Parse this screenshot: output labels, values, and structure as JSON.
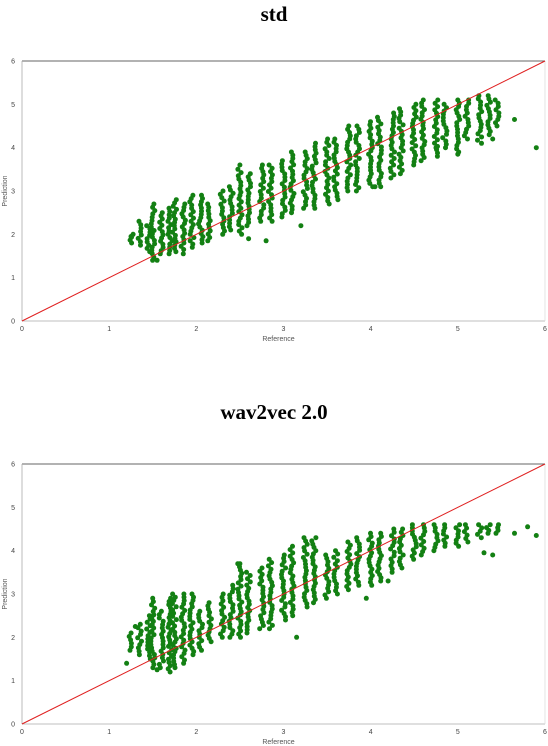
{
  "chart_data": [
    {
      "type": "scatter",
      "title": "std",
      "xlabel": "Reference",
      "ylabel": "Prediction",
      "xlim": [
        0,
        6
      ],
      "ylim": [
        0,
        6
      ],
      "xticks": [
        "0",
        "1",
        "2",
        "3",
        "4",
        "5",
        "6"
      ],
      "yticks": [
        "0",
        "1",
        "2",
        "3",
        "4",
        "5",
        "6"
      ],
      "grid": false,
      "point_color": "#138013",
      "reference_line": {
        "color": "#e02020",
        "from": [
          0,
          0
        ],
        "to": [
          6,
          6
        ]
      },
      "bands": [
        {
          "x": 1.25,
          "lo": 1.8,
          "hi": 2.0
        },
        {
          "x": 1.35,
          "lo": 1.75,
          "hi": 2.3
        },
        {
          "x": 1.45,
          "lo": 1.6,
          "hi": 2.2
        },
        {
          "x": 1.5,
          "lo": 1.4,
          "hi": 2.7
        },
        {
          "x": 1.6,
          "lo": 1.55,
          "hi": 2.5
        },
        {
          "x": 1.7,
          "lo": 1.55,
          "hi": 2.6
        },
        {
          "x": 1.75,
          "lo": 1.6,
          "hi": 2.8
        },
        {
          "x": 1.85,
          "lo": 1.65,
          "hi": 2.7
        },
        {
          "x": 1.95,
          "lo": 1.7,
          "hi": 2.9
        },
        {
          "x": 2.05,
          "lo": 1.8,
          "hi": 2.9
        },
        {
          "x": 2.15,
          "lo": 1.85,
          "hi": 2.7
        },
        {
          "x": 2.3,
          "lo": 2.0,
          "hi": 3.0
        },
        {
          "x": 2.4,
          "lo": 2.1,
          "hi": 3.1
        },
        {
          "x": 2.5,
          "lo": 2.0,
          "hi": 3.5
        },
        {
          "x": 2.6,
          "lo": 2.2,
          "hi": 3.4
        },
        {
          "x": 2.75,
          "lo": 2.3,
          "hi": 3.6
        },
        {
          "x": 2.85,
          "lo": 2.3,
          "hi": 3.6
        },
        {
          "x": 3.0,
          "lo": 2.4,
          "hi": 3.7
        },
        {
          "x": 3.1,
          "lo": 2.5,
          "hi": 3.9
        },
        {
          "x": 3.25,
          "lo": 2.6,
          "hi": 3.9
        },
        {
          "x": 3.35,
          "lo": 2.6,
          "hi": 4.1
        },
        {
          "x": 3.5,
          "lo": 2.7,
          "hi": 4.2
        },
        {
          "x": 3.6,
          "lo": 2.8,
          "hi": 4.2
        },
        {
          "x": 3.75,
          "lo": 3.0,
          "hi": 4.5
        },
        {
          "x": 3.85,
          "lo": 3.0,
          "hi": 4.5
        },
        {
          "x": 4.0,
          "lo": 3.1,
          "hi": 4.6
        },
        {
          "x": 4.1,
          "lo": 3.1,
          "hi": 4.7
        },
        {
          "x": 4.25,
          "lo": 3.3,
          "hi": 4.8
        },
        {
          "x": 4.35,
          "lo": 3.4,
          "hi": 4.9
        },
        {
          "x": 4.5,
          "lo": 3.6,
          "hi": 5.0
        },
        {
          "x": 4.6,
          "lo": 3.7,
          "hi": 5.1
        },
        {
          "x": 4.75,
          "lo": 3.8,
          "hi": 5.1
        },
        {
          "x": 4.85,
          "lo": 4.0,
          "hi": 5.0
        },
        {
          "x": 5.0,
          "lo": 3.9,
          "hi": 5.1
        },
        {
          "x": 5.1,
          "lo": 4.2,
          "hi": 5.1
        },
        {
          "x": 5.25,
          "lo": 4.1,
          "hi": 5.2
        },
        {
          "x": 5.35,
          "lo": 4.3,
          "hi": 5.2
        },
        {
          "x": 5.45,
          "lo": 4.5,
          "hi": 5.1
        }
      ],
      "outliers": [
        {
          "x": 1.25,
          "y": 1.95
        },
        {
          "x": 1.55,
          "y": 1.4
        },
        {
          "x": 1.85,
          "y": 1.55
        },
        {
          "x": 2.5,
          "y": 3.6
        },
        {
          "x": 2.6,
          "y": 1.9
        },
        {
          "x": 2.8,
          "y": 1.85
        },
        {
          "x": 3.2,
          "y": 2.2
        },
        {
          "x": 4.05,
          "y": 3.1
        },
        {
          "x": 4.75,
          "y": 4.0
        },
        {
          "x": 5.0,
          "y": 3.85
        },
        {
          "x": 5.4,
          "y": 4.2
        },
        {
          "x": 5.65,
          "y": 4.65
        },
        {
          "x": 5.9,
          "y": 4.0
        }
      ]
    },
    {
      "type": "scatter",
      "title": "wav2vec 2.0",
      "xlabel": "Reference",
      "ylabel": "Prediction",
      "xlim": [
        0,
        6
      ],
      "ylim": [
        0,
        6
      ],
      "xticks": [
        "0",
        "1",
        "2",
        "3",
        "4",
        "5",
        "6"
      ],
      "yticks": [
        "0",
        "1",
        "2",
        "3",
        "4",
        "5",
        "6"
      ],
      "grid": false,
      "point_color": "#138013",
      "reference_line": {
        "color": "#e02020",
        "from": [
          0,
          0
        ],
        "to": [
          6,
          6
        ]
      },
      "bands": [
        {
          "x": 1.25,
          "lo": 1.7,
          "hi": 2.1
        },
        {
          "x": 1.35,
          "lo": 1.6,
          "hi": 2.3
        },
        {
          "x": 1.45,
          "lo": 1.5,
          "hi": 2.5
        },
        {
          "x": 1.5,
          "lo": 1.3,
          "hi": 2.9
        },
        {
          "x": 1.6,
          "lo": 1.3,
          "hi": 2.6
        },
        {
          "x": 1.7,
          "lo": 1.2,
          "hi": 2.9
        },
        {
          "x": 1.75,
          "lo": 1.3,
          "hi": 3.0
        },
        {
          "x": 1.85,
          "lo": 1.4,
          "hi": 3.0
        },
        {
          "x": 1.95,
          "lo": 1.6,
          "hi": 3.0
        },
        {
          "x": 2.05,
          "lo": 1.7,
          "hi": 2.6
        },
        {
          "x": 2.15,
          "lo": 1.9,
          "hi": 2.8
        },
        {
          "x": 2.3,
          "lo": 2.0,
          "hi": 3.0
        },
        {
          "x": 2.4,
          "lo": 2.0,
          "hi": 3.2
        },
        {
          "x": 2.5,
          "lo": 2.0,
          "hi": 3.7
        },
        {
          "x": 2.6,
          "lo": 2.1,
          "hi": 3.5
        },
        {
          "x": 2.75,
          "lo": 2.2,
          "hi": 3.6
        },
        {
          "x": 2.85,
          "lo": 2.2,
          "hi": 3.8
        },
        {
          "x": 3.0,
          "lo": 2.4,
          "hi": 3.9
        },
        {
          "x": 3.1,
          "lo": 2.5,
          "hi": 4.1
        },
        {
          "x": 3.25,
          "lo": 2.7,
          "hi": 4.3
        },
        {
          "x": 3.35,
          "lo": 2.8,
          "hi": 4.3
        },
        {
          "x": 3.5,
          "lo": 2.9,
          "hi": 3.9
        },
        {
          "x": 3.6,
          "lo": 3.0,
          "hi": 4.0
        },
        {
          "x": 3.75,
          "lo": 3.1,
          "hi": 4.2
        },
        {
          "x": 3.85,
          "lo": 3.2,
          "hi": 4.3
        },
        {
          "x": 4.0,
          "lo": 3.2,
          "hi": 4.4
        },
        {
          "x": 4.1,
          "lo": 3.3,
          "hi": 4.4
        },
        {
          "x": 4.25,
          "lo": 3.5,
          "hi": 4.5
        },
        {
          "x": 4.35,
          "lo": 3.6,
          "hi": 4.5
        },
        {
          "x": 4.5,
          "lo": 3.8,
          "hi": 4.6
        },
        {
          "x": 4.6,
          "lo": 3.9,
          "hi": 4.6
        },
        {
          "x": 4.75,
          "lo": 4.0,
          "hi": 4.6
        },
        {
          "x": 4.85,
          "lo": 4.1,
          "hi": 4.6
        },
        {
          "x": 5.0,
          "lo": 4.1,
          "hi": 4.6
        },
        {
          "x": 5.1,
          "lo": 4.2,
          "hi": 4.6
        },
        {
          "x": 5.25,
          "lo": 4.3,
          "hi": 4.6
        },
        {
          "x": 5.35,
          "lo": 4.4,
          "hi": 4.6
        },
        {
          "x": 5.45,
          "lo": 4.4,
          "hi": 4.6
        }
      ],
      "outliers": [
        {
          "x": 1.2,
          "y": 1.4
        },
        {
          "x": 1.3,
          "y": 2.25
        },
        {
          "x": 1.55,
          "y": 1.25
        },
        {
          "x": 2.5,
          "y": 3.7
        },
        {
          "x": 3.15,
          "y": 2.0
        },
        {
          "x": 3.95,
          "y": 2.9
        },
        {
          "x": 4.2,
          "y": 3.3
        },
        {
          "x": 5.3,
          "y": 3.95
        },
        {
          "x": 5.4,
          "y": 3.9
        },
        {
          "x": 5.65,
          "y": 4.4
        },
        {
          "x": 5.8,
          "y": 4.55
        },
        {
          "x": 5.9,
          "y": 4.35
        }
      ]
    }
  ]
}
